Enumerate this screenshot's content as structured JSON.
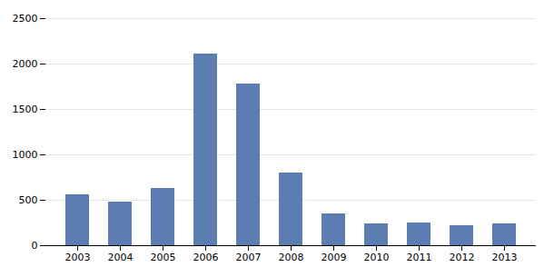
{
  "chart_data": {
    "type": "bar",
    "categories": [
      "2003",
      "2004",
      "2005",
      "2006",
      "2007",
      "2008",
      "2009",
      "2010",
      "2011",
      "2012",
      "2013"
    ],
    "values": [
      560,
      480,
      630,
      2110,
      1780,
      800,
      350,
      240,
      250,
      220,
      240
    ],
    "color": "#5b7db1",
    "ylim": [
      0,
      2500
    ],
    "yticks": [
      0,
      500,
      1000,
      1500,
      2000,
      2500
    ],
    "grid": true
  }
}
